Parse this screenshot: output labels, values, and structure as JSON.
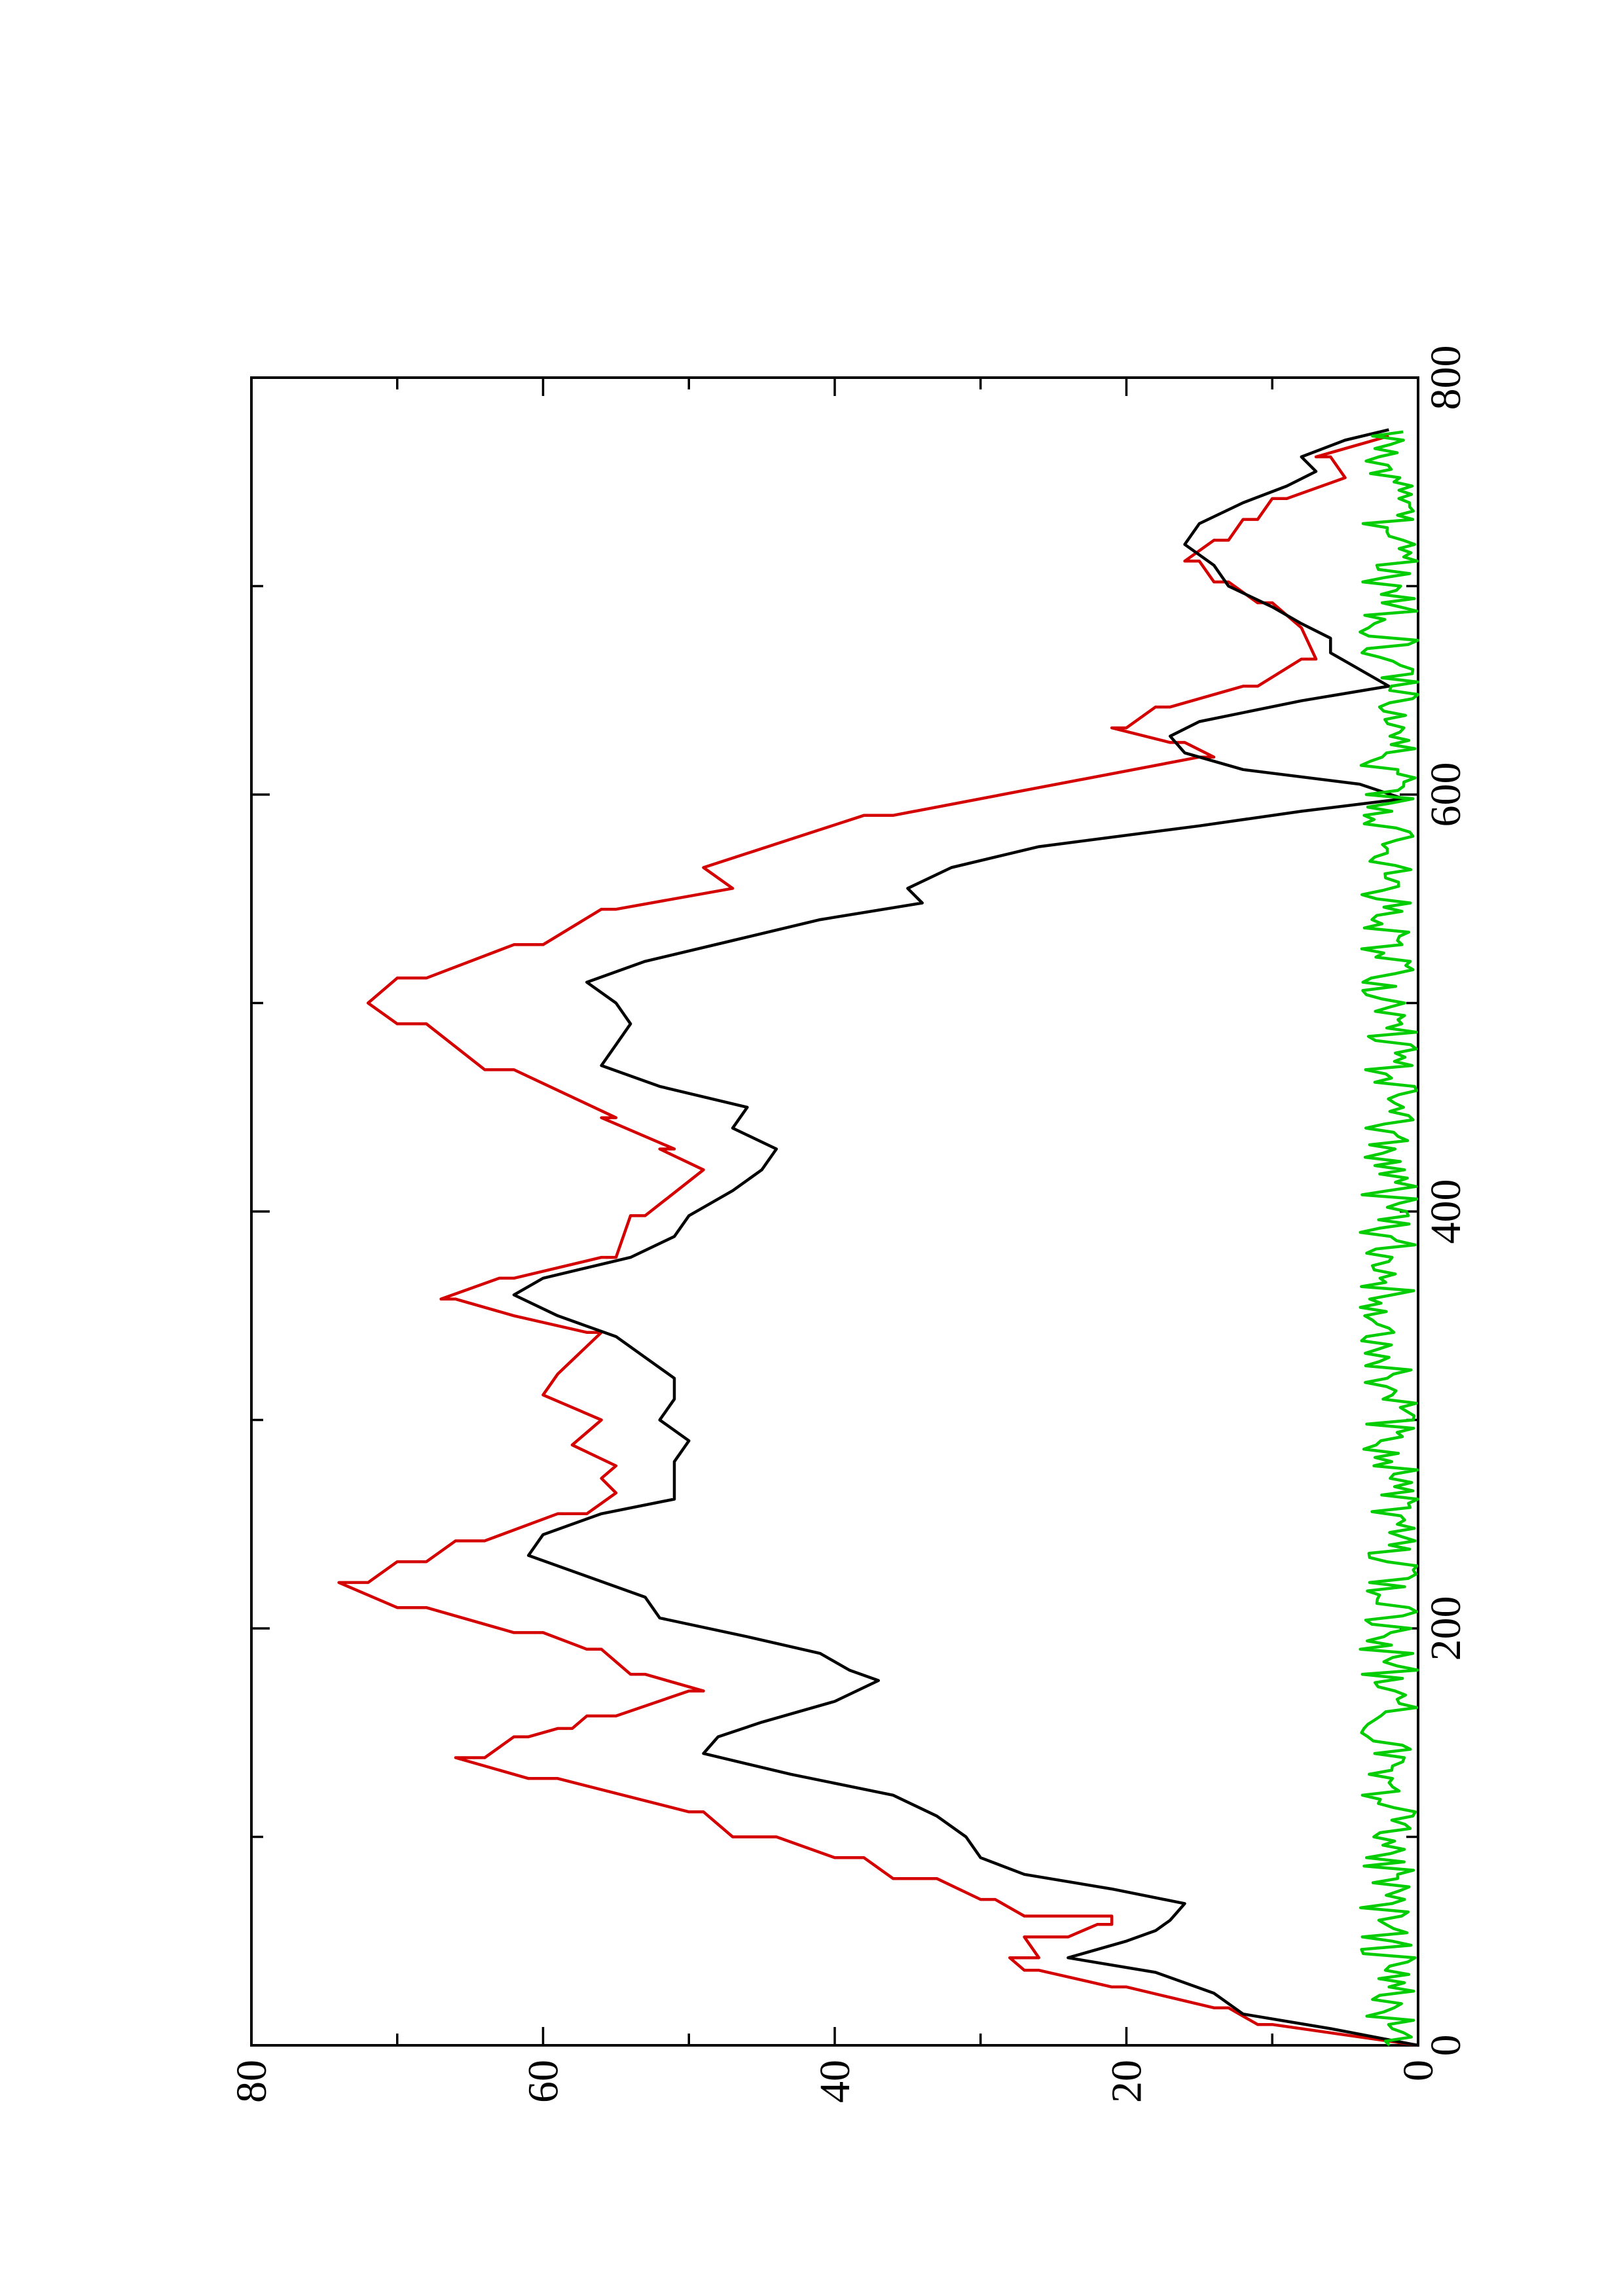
{
  "chart_data": {
    "type": "line",
    "title": "",
    "xlabel": "",
    "ylabel": "",
    "orientation": "rotated 90° counter-clockwise",
    "xlim": [
      0,
      800
    ],
    "ylim": [
      0,
      80
    ],
    "x_ticks": [
      0,
      200,
      400,
      600,
      800
    ],
    "y_ticks": [
      0,
      20,
      40,
      60,
      80
    ],
    "x_tick_labels": [
      "0",
      "200",
      "400",
      "600",
      "800"
    ],
    "y_tick_labels": [
      "0",
      "20",
      "40",
      "60",
      "80"
    ],
    "grid": false,
    "legend": "none",
    "series": [
      {
        "color": "#d40000",
        "x": [
          0,
          10,
          10,
          18,
          18,
          28,
          28,
          36,
          36,
          42,
          42,
          52,
          52,
          58,
          58,
          62,
          62,
          70,
          70,
          80,
          80,
          90,
          90,
          100,
          100,
          112,
          112,
          128,
          128,
          138,
          138,
          148,
          148,
          152,
          152,
          158,
          158,
          170,
          170,
          178,
          178,
          190,
          190,
          198,
          198,
          210,
          210,
          222,
          222,
          232,
          232,
          242,
          242,
          255,
          255,
          265,
          265,
          272,
          272,
          278,
          278,
          288,
          288,
          300,
          300,
          312,
          312,
          322,
          322,
          342,
          342,
          350,
          350,
          358,
          358,
          368,
          368,
          378,
          378,
          398,
          398,
          420,
          420,
          430,
          430,
          445,
          445,
          468,
          468,
          490,
          490,
          500,
          500,
          512,
          512,
          528,
          528,
          545,
          545,
          555,
          555,
          565,
          565,
          590,
          590,
          618,
          618,
          625,
          625,
          632,
          632,
          642,
          642,
          652,
          652,
          665,
          665,
          680,
          680,
          692,
          692,
          702,
          702,
          712,
          712,
          722,
          722,
          732,
          732,
          742,
          742,
          752,
          752,
          762,
          762,
          772
        ],
        "y": [
          0,
          10,
          11,
          13,
          14,
          20,
          21,
          26,
          27,
          28,
          26,
          27,
          24,
          22,
          21,
          21,
          27,
          29,
          30,
          33,
          36,
          38,
          40,
          44,
          47,
          49,
          50,
          59,
          61,
          66,
          64,
          62,
          61,
          59,
          58,
          57,
          55,
          50,
          49,
          53,
          54,
          56,
          57,
          60,
          62,
          68,
          70,
          74,
          72,
          70,
          68,
          66,
          64,
          59,
          57,
          55,
          55,
          56,
          56,
          55,
          55,
          58,
          58,
          56,
          56,
          60,
          60,
          59,
          59,
          56,
          57,
          62,
          62,
          66,
          67,
          63,
          62,
          56,
          55,
          54,
          53,
          49,
          49,
          52,
          51,
          56,
          55,
          62,
          64,
          68,
          70,
          72,
          72,
          70,
          68,
          62,
          60,
          56,
          55,
          47,
          47,
          49,
          49,
          38,
          36,
          15,
          14,
          16,
          17,
          21,
          20,
          18,
          17,
          12,
          11,
          8,
          7,
          8,
          8,
          10,
          11,
          13,
          14,
          15,
          16,
          14,
          13,
          12,
          11,
          10,
          9,
          5,
          5,
          6,
          7,
          2
        ],
        "shape": "stepped line following peaks"
      },
      {
        "color": "#000000",
        "x": [
          0,
          8,
          15,
          25,
          35,
          42,
          50,
          55,
          60,
          68,
          75,
          82,
          90,
          100,
          110,
          120,
          130,
          140,
          148,
          155,
          165,
          175,
          180,
          188,
          196,
          205,
          215,
          225,
          235,
          245,
          255,
          262,
          270,
          280,
          290,
          300,
          310,
          320,
          330,
          340,
          350,
          360,
          368,
          378,
          388,
          398,
          410,
          420,
          430,
          440,
          450,
          460,
          470,
          480,
          490,
          500,
          510,
          520,
          530,
          540,
          548,
          555,
          565,
          575,
          585,
          592,
          598,
          605,
          612,
          620,
          628,
          635,
          645,
          652,
          660,
          668,
          675,
          682,
          690,
          700,
          710,
          720,
          730,
          740,
          748,
          755,
          762,
          770,
          775
        ],
        "y": [
          0,
          6,
          12,
          14,
          18,
          24,
          20,
          18,
          17,
          16,
          21,
          27,
          30,
          31,
          33,
          36,
          43,
          49,
          48,
          45,
          40,
          37,
          39,
          41,
          46,
          52,
          53,
          57,
          61,
          60,
          56,
          51,
          51,
          51,
          50,
          52,
          51,
          51,
          53,
          55,
          59,
          62,
          60,
          54,
          51,
          50,
          47,
          45,
          44,
          47,
          46,
          52,
          56,
          55,
          54,
          55,
          57,
          53,
          47,
          41,
          34,
          35,
          32,
          26,
          15,
          8,
          1,
          4,
          12,
          16,
          17,
          15,
          8,
          2,
          4,
          6,
          6,
          8,
          10,
          13,
          14,
          16,
          15,
          12,
          9,
          7,
          8,
          5,
          2
        ],
        "shape": "smoothed jagged line"
      },
      {
        "color": "#00cc00",
        "x_range": [
          0,
          775
        ],
        "y_range": [
          0,
          4
        ],
        "note": "noisy line hugging zero across full x range"
      }
    ]
  }
}
